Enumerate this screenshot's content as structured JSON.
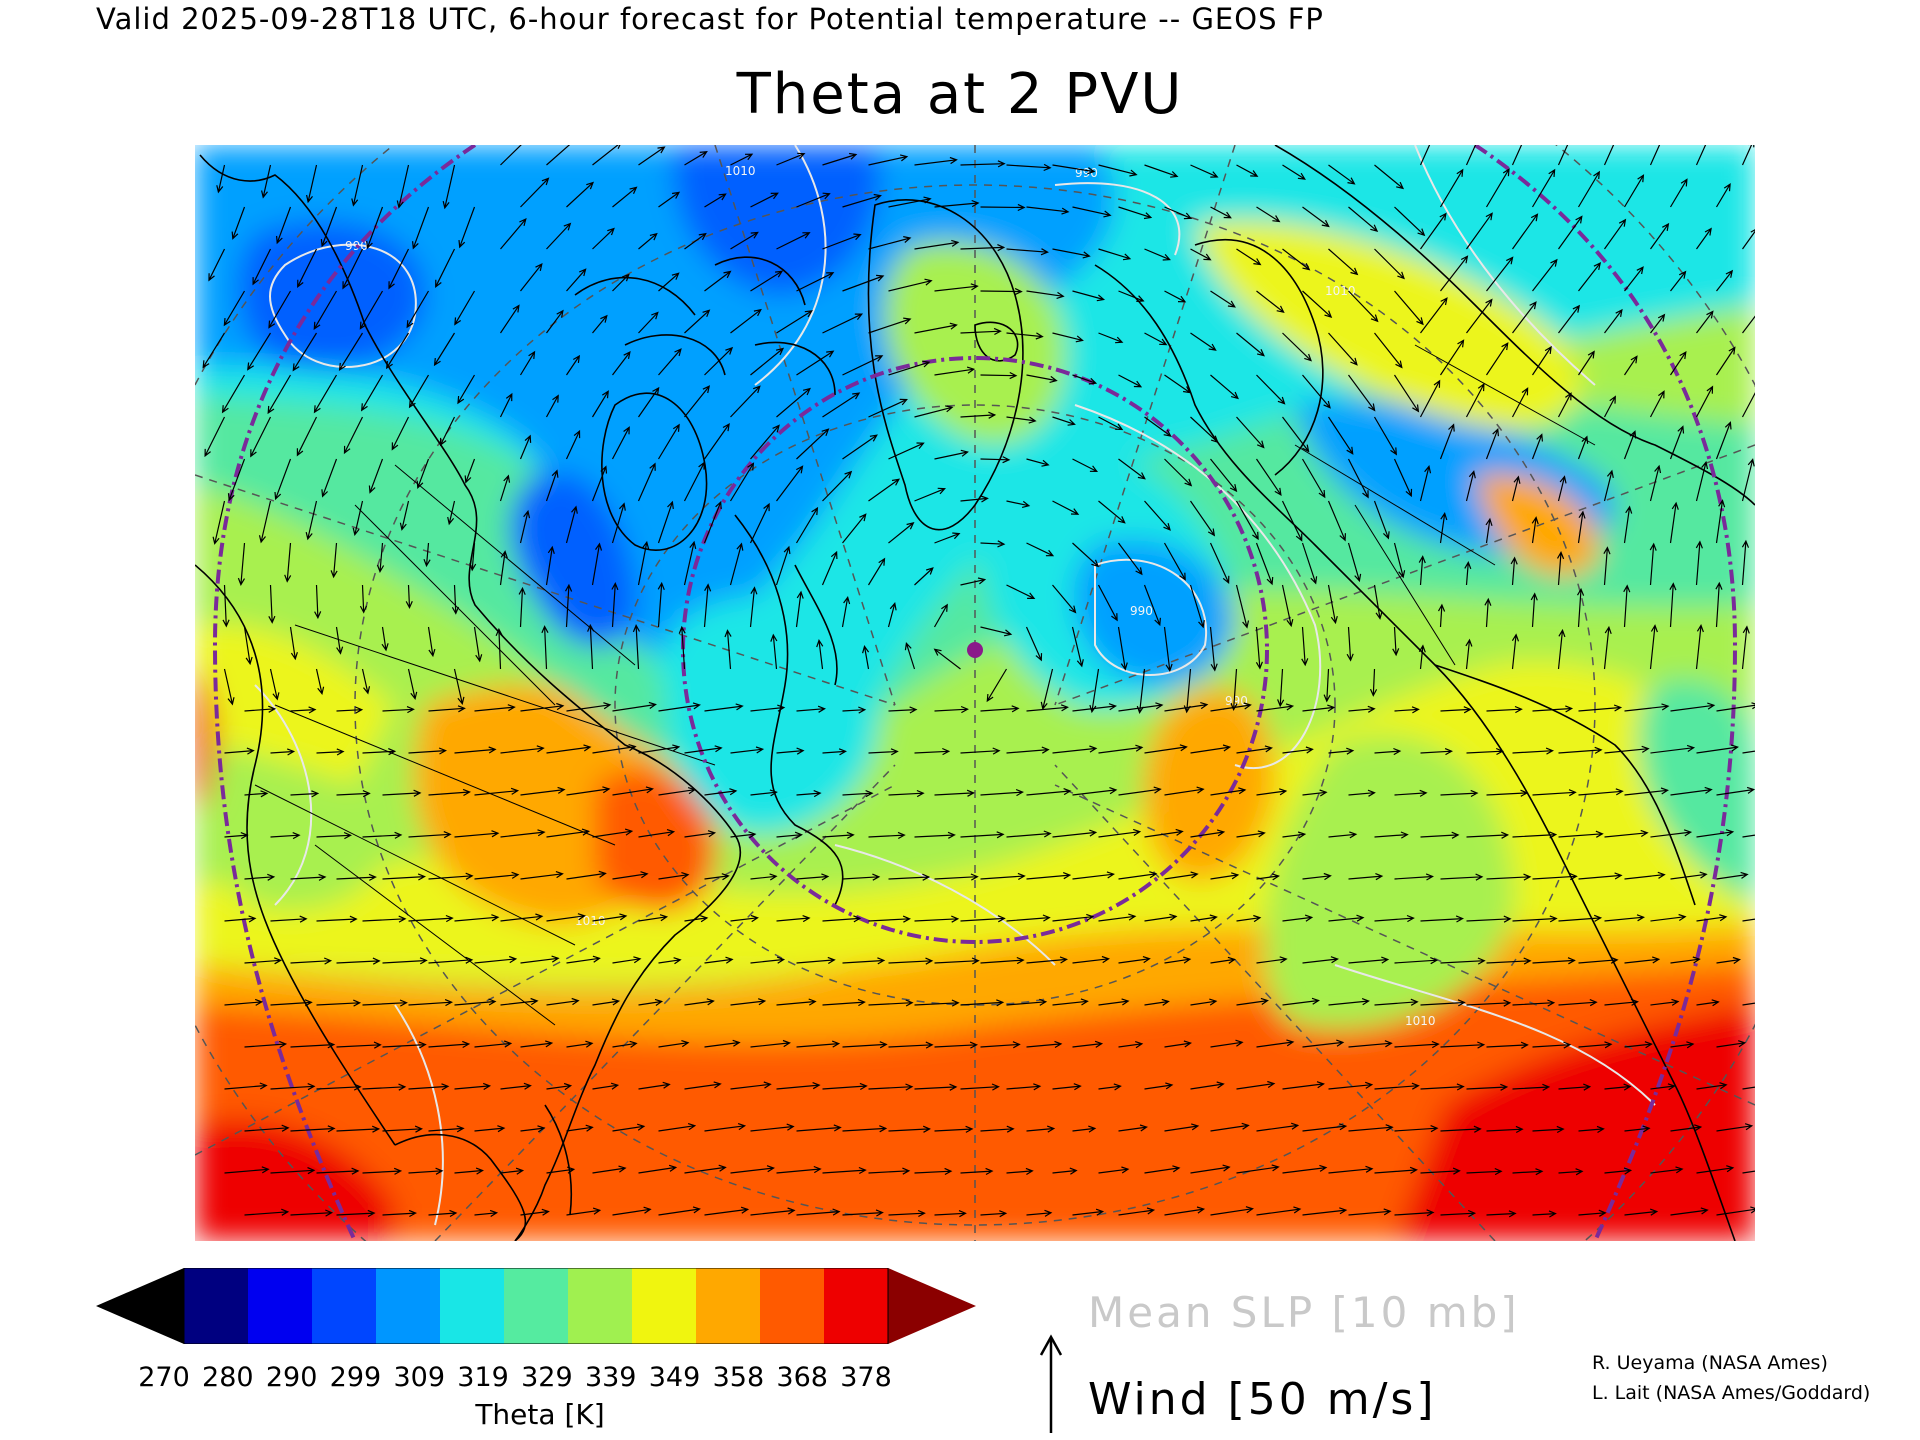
{
  "header": {
    "valid_line": "Valid 2025-09-28T18 UTC, 6-hour forecast for Potential temperature -- GEOS FP"
  },
  "map": {
    "title": "Theta at 2 PVU",
    "slp_contour_labels": [
      "990",
      "1010",
      "990",
      "1010",
      "990",
      "990",
      "1010",
      "1010"
    ],
    "field_colors": {
      "cold": "#0060ff",
      "cool": "#00a0ff",
      "cyan": "#1ee6e6",
      "mint": "#55e8a0",
      "green": "#a8f050",
      "yellow": "#ecf51a",
      "orange": "#ffa800",
      "redorange": "#ff5a00",
      "red": "#ee0000",
      "darkred": "#900000"
    },
    "overlay_colors": {
      "coast": "#000000",
      "slp_contours": "#e8e8e8",
      "range_rings": "#7a2a9a",
      "grid": "#555555"
    }
  },
  "colorbar": {
    "segment_colors": [
      "#000080",
      "#0000f0",
      "#0046ff",
      "#0096ff",
      "#19e6e6",
      "#55eba0",
      "#a0f050",
      "#f0f50f",
      "#ffa800",
      "#ff5a00",
      "#ee0000"
    ],
    "below_color": "#000000",
    "above_color": "#8b0000",
    "tick_labels": [
      "270",
      "280",
      "290",
      "299",
      "309",
      "319",
      "329",
      "339",
      "349",
      "358",
      "368",
      "378"
    ],
    "label": "Theta [K]"
  },
  "legend": {
    "slp": "Mean SLP [10 mb]",
    "wind": "Wind [50 m/s]",
    "wind_arrow_icon": "arrow-up-icon"
  },
  "credits": {
    "line1": "R. Ueyama (NASA Ames)",
    "line2": "L. Lait (NASA Ames/Goddard)"
  }
}
